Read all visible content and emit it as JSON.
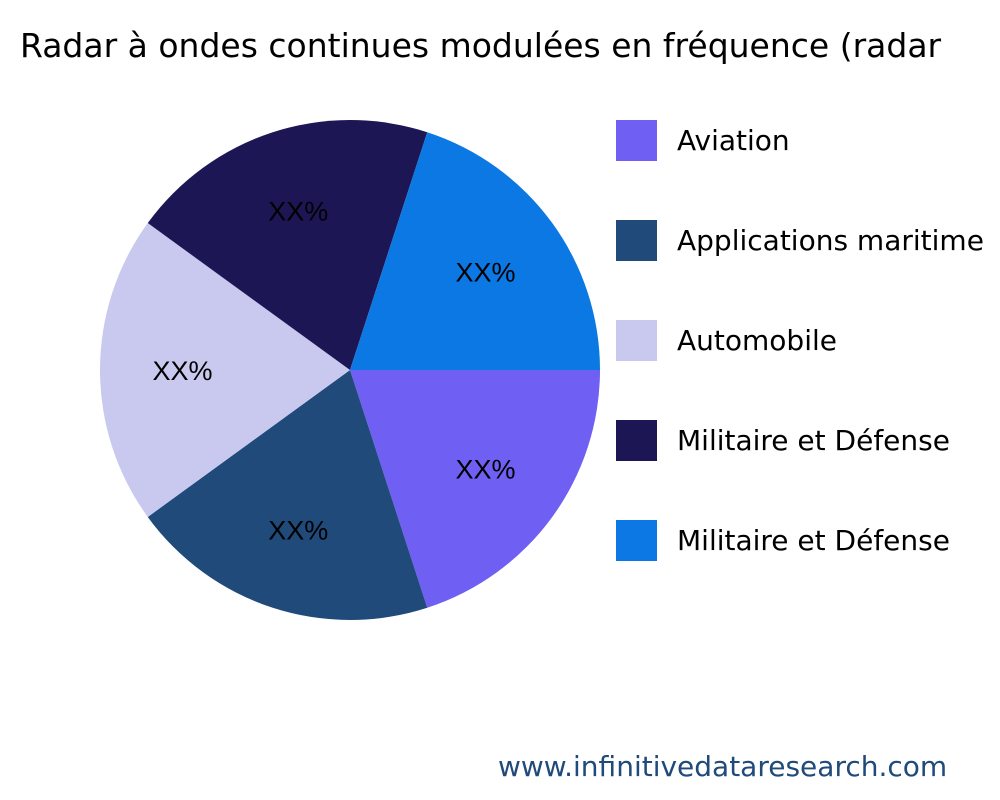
{
  "chart_data": {
    "type": "pie",
    "title": "Radar à ondes continues modulées en fréquence (radar",
    "categories": [
      "Aviation",
      "Applications maritime",
      "Automobile",
      "Militaire et Défense",
      "Militaire et Défense"
    ],
    "values": [
      20,
      20,
      20,
      20,
      20
    ],
    "data_labels": [
      "XX%",
      "XX%",
      "XX%",
      "XX%",
      "XX%"
    ],
    "colors": [
      "#6f5ff2",
      "#1f4a7a",
      "#c9c9f0",
      "#1c1754",
      "#0b78e3"
    ],
    "legend_placement": "right"
  },
  "footer": "www.infinitivedataresearch.com"
}
